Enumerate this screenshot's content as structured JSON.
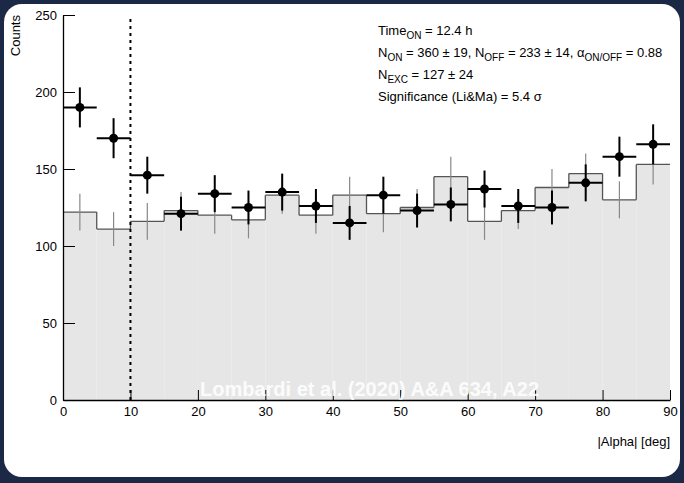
{
  "chart_data": {
    "type": "histogram",
    "x_label": "|Alpha| [deg]",
    "y_label": "Counts",
    "bins": [
      0,
      5,
      10,
      15,
      20,
      25,
      30,
      35,
      40,
      45,
      50,
      55,
      60,
      65,
      70,
      75,
      80,
      85,
      90
    ],
    "series": [
      {
        "type": "histogram",
        "color": "#e6e6e6",
        "values": [
          122,
          111,
          116,
          123,
          120,
          117,
          133,
          120,
          133,
          121,
          125,
          145,
          116,
          123,
          138,
          147,
          130,
          153
        ],
        "errors": [
          12,
          11,
          12,
          12,
          12,
          12,
          12,
          12,
          12,
          12,
          12,
          13,
          12,
          12,
          12,
          13,
          12,
          13
        ]
      },
      {
        "type": "errorbar",
        "color": "#000000",
        "marker": "circle",
        "values": [
          190,
          170,
          146,
          121,
          134,
          125,
          135,
          126,
          115,
          133,
          123,
          127,
          137,
          126,
          125,
          141,
          158,
          166
        ],
        "errors": [
          13,
          13,
          12,
          11,
          12,
          11,
          12,
          11,
          11,
          12,
          11,
          11,
          12,
          11,
          11,
          12,
          13,
          13
        ]
      }
    ],
    "vline": 10,
    "annotations": [
      [
        "Time",
        {
          "sub": "ON"
        },
        " = 12.4 h"
      ],
      [
        "N",
        {
          "sub": "ON"
        },
        " = 360 ± 19, N",
        {
          "sub": "OFF"
        },
        " = 233 ± 14, α",
        {
          "sub": "ON/OFF"
        },
        " = 0.88"
      ],
      [
        "N",
        {
          "sub": "EXC"
        },
        " = 127 ± 24"
      ],
      [
        "Significance (Li&Ma) = 5.4 σ"
      ]
    ],
    "watermark": "Lombardi et al. (2020) A&A 634, A22",
    "xlim": [
      0,
      90
    ],
    "xticks": [
      0,
      10,
      20,
      30,
      40,
      50,
      60,
      70,
      80,
      90
    ],
    "ylim": [
      0,
      250
    ],
    "yticks": [
      0,
      50,
      100,
      150,
      200,
      250
    ]
  }
}
